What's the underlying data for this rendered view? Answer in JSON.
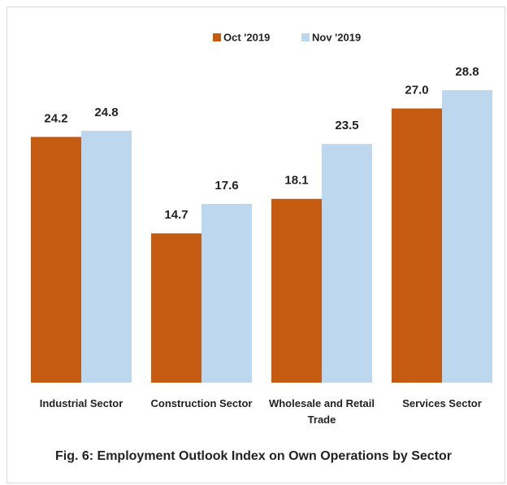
{
  "chart_data": {
    "type": "bar",
    "title": "Fig. 6: Employment Outlook  Index on Own Operations by Sector",
    "categories": [
      "Industrial Sector",
      "Construction Sector",
      "Wholesale and Retail Trade",
      "Services Sector"
    ],
    "series": [
      {
        "name": "Oct '2019",
        "color": "#c55a11",
        "values": [
          24.2,
          14.7,
          18.1,
          27
        ],
        "value_labels": [
          "24.2",
          "14.7",
          "18.1",
          "27.0"
        ]
      },
      {
        "name": "Nov '2019",
        "color": "#bdd7ee",
        "values": [
          24.8,
          17.6,
          23.5,
          28.8
        ],
        "value_labels": [
          "24.8",
          "17.6",
          "23.5",
          "28.8"
        ]
      }
    ],
    "legend": "top"
  }
}
